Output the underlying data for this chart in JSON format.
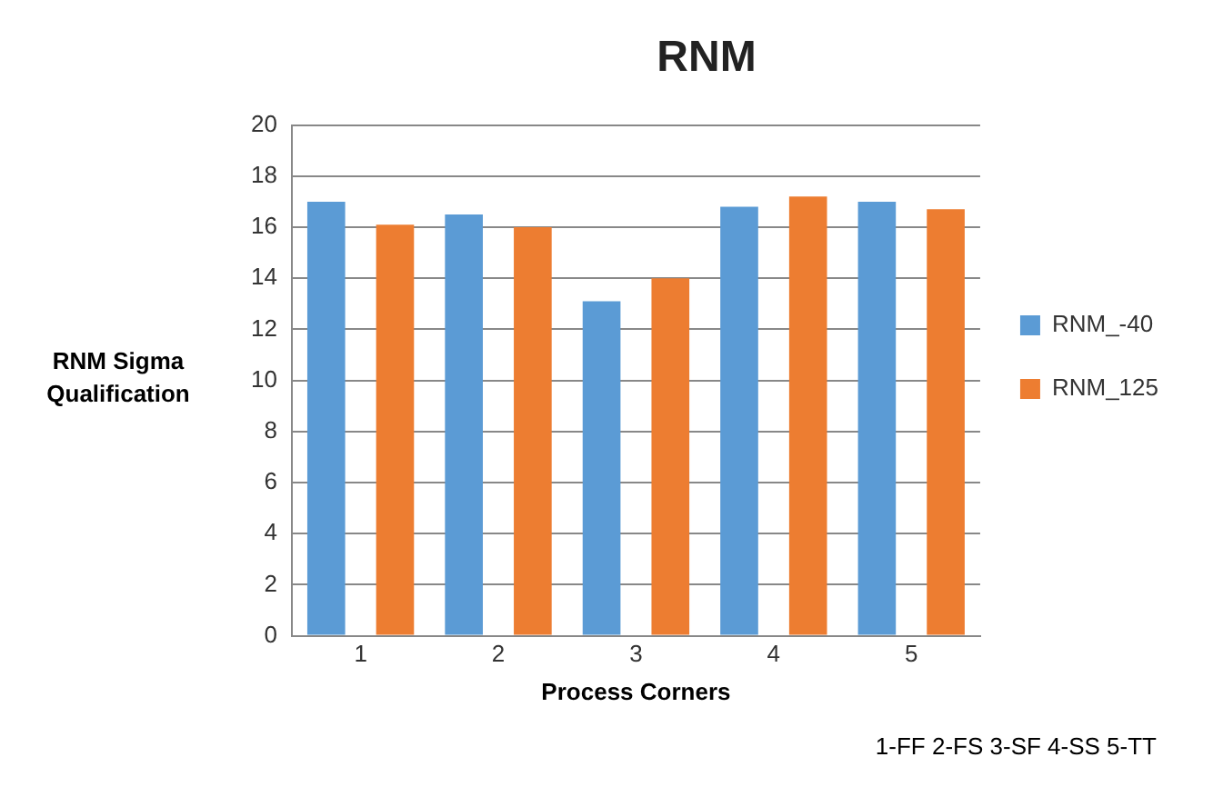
{
  "chart_data": {
    "type": "bar",
    "title": "RNM",
    "xlabel": "Process Corners",
    "ylabel": "RNM Sigma Qualification",
    "categories": [
      "1",
      "2",
      "3",
      "4",
      "5"
    ],
    "series": [
      {
        "name": "RNM_-40",
        "color": "#5b9bd5",
        "values": [
          17.0,
          16.5,
          13.1,
          16.8,
          17.0
        ]
      },
      {
        "name": "RNM_125",
        "color": "#ed7d31",
        "values": [
          16.1,
          16.0,
          14.0,
          17.2,
          16.7
        ]
      }
    ],
    "ylim": [
      0,
      20
    ],
    "yticks": [
      0,
      2,
      4,
      6,
      8,
      10,
      12,
      14,
      16,
      18,
      20
    ],
    "grid": "y",
    "legend": "right",
    "annotations": [
      "1-FF 2-FS 3-SF 4-SS 5-TT"
    ]
  }
}
